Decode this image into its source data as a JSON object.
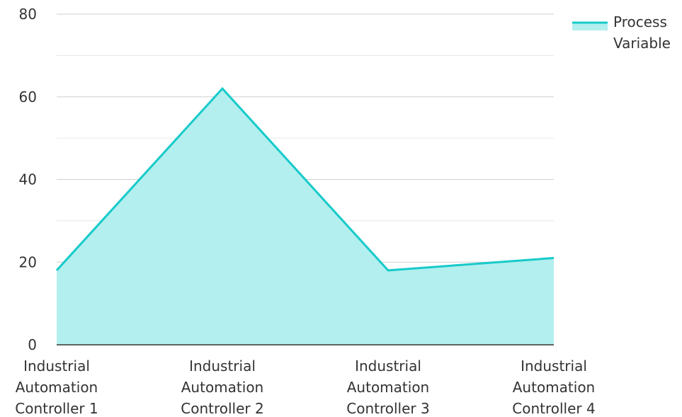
{
  "chart_data": {
    "type": "area",
    "title": "",
    "xlabel": "",
    "ylabel": "",
    "categories": [
      "Industrial Automation Controller 1",
      "Industrial Automation Controller 2",
      "Industrial Automation Controller 3",
      "Industrial Automation Controller 4"
    ],
    "category_lines": [
      [
        "Industrial",
        "Automation",
        "Controller 1"
      ],
      [
        "Industrial",
        "Automation",
        "Controller 2"
      ],
      [
        "Industrial",
        "Automation",
        "Controller 3"
      ],
      [
        "Industrial",
        "Automation",
        "Controller 4"
      ]
    ],
    "series": [
      {
        "name": "Process Variable",
        "values": [
          18,
          62,
          18,
          21
        ],
        "line_color": "#17CACA",
        "fill_color": "#B2EFEE"
      }
    ],
    "legend_lines": [
      "Process",
      "Variable"
    ],
    "ylim": [
      0,
      80
    ],
    "yticks": [
      0,
      20,
      40,
      60,
      80
    ],
    "grid": true,
    "legend_position": "top-right"
  }
}
